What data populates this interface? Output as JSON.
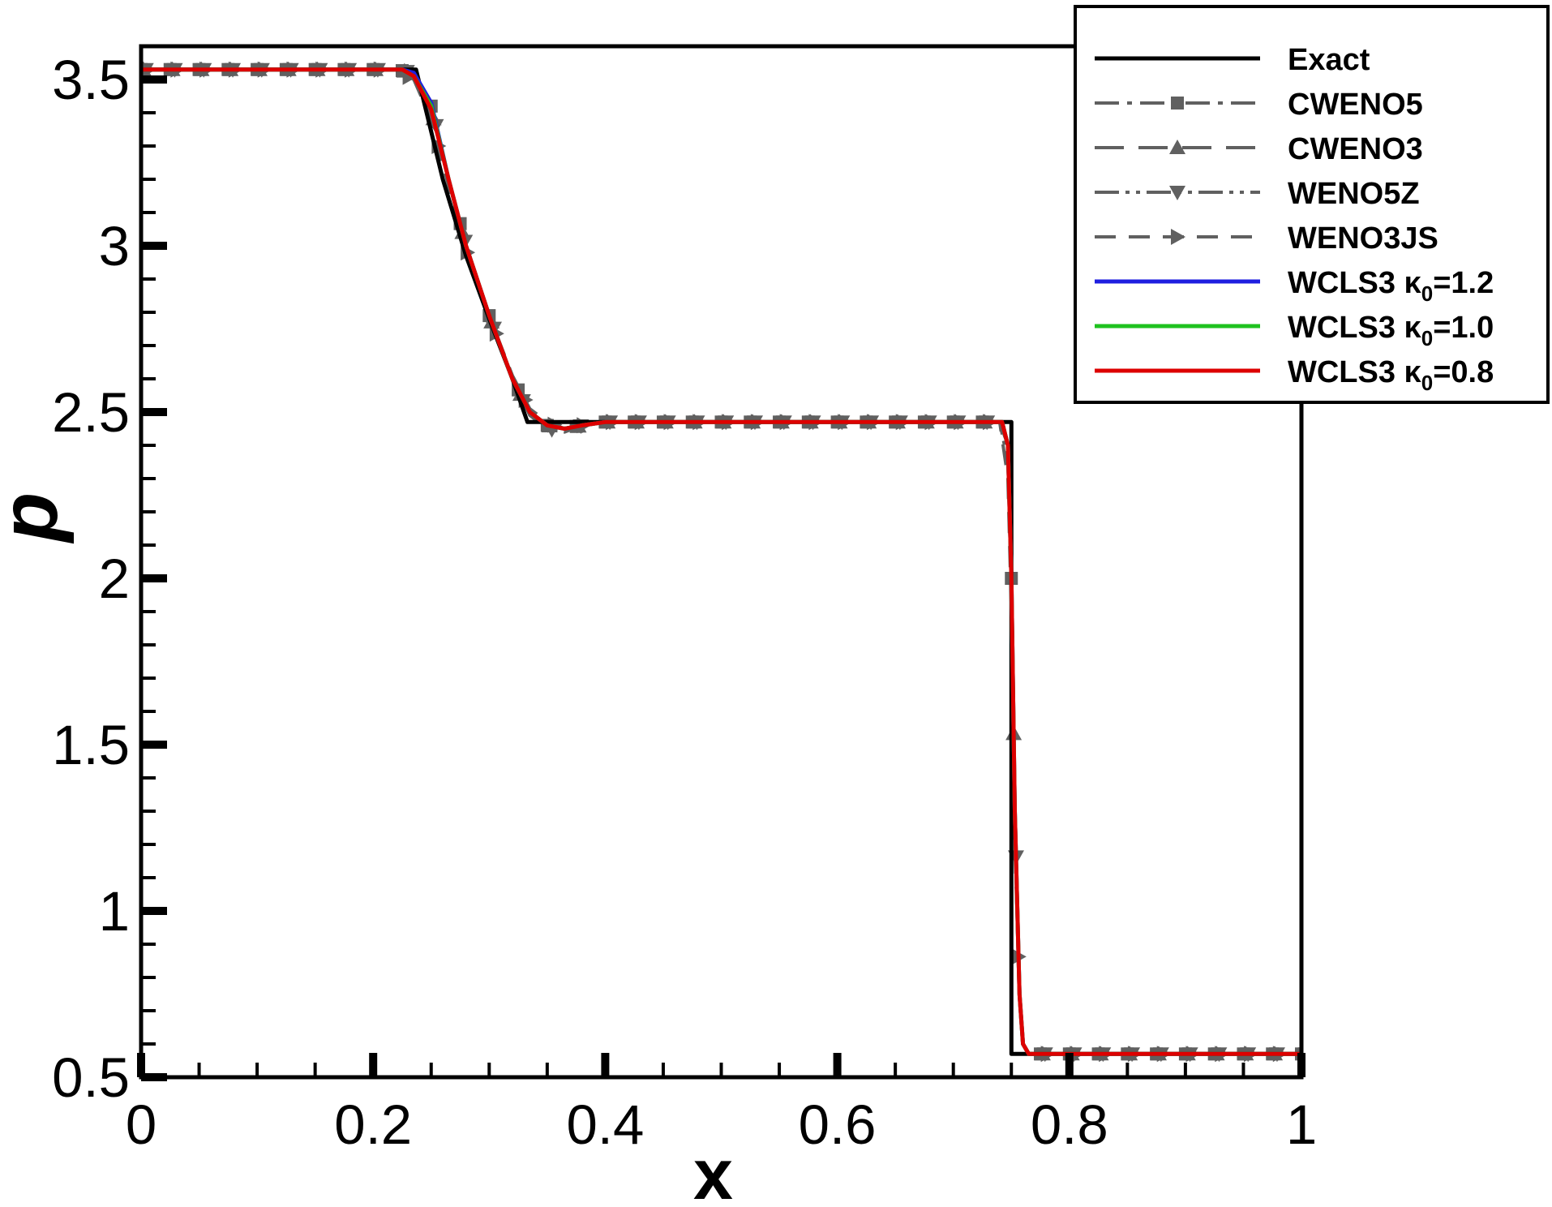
{
  "chart_data": {
    "type": "line",
    "xlabel": "x",
    "ylabel": "p",
    "xlim": [
      0,
      1
    ],
    "ylim": [
      0.5,
      3.6
    ],
    "x_ticks": [
      "0",
      "0.2",
      "0.4",
      "0.6",
      "0.8",
      "1"
    ],
    "x_tick_values": [
      0,
      0.2,
      0.4,
      0.6,
      0.8,
      1
    ],
    "y_ticks": [
      "0.5",
      "1",
      "1.5",
      "2",
      "2.5",
      "3",
      "3.5"
    ],
    "y_tick_values": [
      0.5,
      1,
      1.5,
      2,
      2.5,
      3,
      3.5
    ],
    "grid": false,
    "legend_position": "top-right",
    "series": [
      {
        "name": "Exact",
        "color": "#000000",
        "style": "solid",
        "marker": "none",
        "x": [
          0,
          0.237,
          0.26,
          0.28,
          0.3,
          0.32,
          0.333,
          0.75,
          0.75,
          1
        ],
        "y": [
          3.53,
          3.53,
          3.2,
          2.97,
          2.78,
          2.6,
          2.47,
          2.47,
          0.57,
          0.57
        ]
      },
      {
        "name": "CWENO5",
        "color": "#606060",
        "style": "dash-dot",
        "marker": "square",
        "x": [
          0,
          0.22,
          0.235,
          0.25,
          0.265,
          0.28,
          0.3,
          0.32,
          0.335,
          0.35,
          0.365,
          0.38,
          0.4,
          0.6,
          0.74,
          0.747,
          0.75,
          0.753,
          0.757,
          0.76,
          0.765,
          1
        ],
        "y": [
          3.53,
          3.53,
          3.52,
          3.42,
          3.2,
          3.0,
          2.79,
          2.6,
          2.5,
          2.46,
          2.45,
          2.46,
          2.47,
          2.47,
          2.47,
          2.4,
          2.0,
          1.3,
          0.75,
          0.6,
          0.57,
          0.57
        ]
      },
      {
        "name": "CWENO3",
        "color": "#606060",
        "style": "long-dash",
        "marker": "triangle-up",
        "x": [
          0,
          0.22,
          0.235,
          0.25,
          0.265,
          0.28,
          0.3,
          0.32,
          0.335,
          0.35,
          0.365,
          0.38,
          0.4,
          0.6,
          0.74,
          0.747,
          0.75,
          0.753,
          0.757,
          0.76,
          0.765,
          1
        ],
        "y": [
          3.53,
          3.53,
          3.52,
          3.41,
          3.2,
          3.0,
          2.79,
          2.6,
          2.5,
          2.46,
          2.45,
          2.46,
          2.47,
          2.47,
          2.47,
          2.4,
          2.0,
          1.3,
          0.75,
          0.6,
          0.57,
          0.57
        ]
      },
      {
        "name": "WENO5Z",
        "color": "#606060",
        "style": "dash-dot-dot",
        "marker": "triangle-down",
        "x": [
          0,
          0.22,
          0.235,
          0.25,
          0.265,
          0.28,
          0.3,
          0.32,
          0.335,
          0.35,
          0.365,
          0.38,
          0.4,
          0.6,
          0.74,
          0.747,
          0.75,
          0.753,
          0.757,
          0.76,
          0.765,
          1
        ],
        "y": [
          3.53,
          3.53,
          3.52,
          3.42,
          3.2,
          3.0,
          2.79,
          2.6,
          2.49,
          2.45,
          2.44,
          2.46,
          2.47,
          2.47,
          2.47,
          2.35,
          2.0,
          1.3,
          0.75,
          0.6,
          0.57,
          0.57
        ]
      },
      {
        "name": "WENO3JS",
        "color": "#606060",
        "style": "dashed",
        "marker": "triangle-right",
        "x": [
          0,
          0.22,
          0.235,
          0.25,
          0.265,
          0.28,
          0.3,
          0.32,
          0.335,
          0.35,
          0.365,
          0.38,
          0.4,
          0.6,
          0.74,
          0.747,
          0.75,
          0.753,
          0.757,
          0.76,
          0.765,
          1
        ],
        "y": [
          3.53,
          3.53,
          3.5,
          3.38,
          3.18,
          2.99,
          2.79,
          2.61,
          2.51,
          2.47,
          2.45,
          2.46,
          2.47,
          2.47,
          2.47,
          2.3,
          1.9,
          1.2,
          0.75,
          0.6,
          0.57,
          0.57
        ]
      },
      {
        "name": "WCLS3 κ0=1.2",
        "label_main": "WCLS3 κ",
        "label_sub": "0",
        "label_tail": "=1.2",
        "color": "#1f1fe0",
        "style": "solid",
        "marker": "none",
        "x": [
          0,
          0.225,
          0.235,
          0.25,
          0.265,
          0.28,
          0.3,
          0.32,
          0.335,
          0.35,
          0.365,
          0.38,
          0.4,
          0.6,
          0.742,
          0.747,
          0.75,
          0.753,
          0.757,
          0.76,
          0.765,
          1
        ],
        "y": [
          3.53,
          3.53,
          3.52,
          3.43,
          3.2,
          3.0,
          2.79,
          2.6,
          2.5,
          2.46,
          2.45,
          2.46,
          2.47,
          2.47,
          2.47,
          2.4,
          2.0,
          1.3,
          0.75,
          0.6,
          0.57,
          0.57
        ]
      },
      {
        "name": "WCLS3 κ0=1.0",
        "label_main": "WCLS3 κ",
        "label_sub": "0",
        "label_tail": "=1.0",
        "color": "#1fc21f",
        "style": "solid",
        "marker": "none",
        "x": [
          0,
          0.225,
          0.235,
          0.25,
          0.265,
          0.28,
          0.3,
          0.32,
          0.335,
          0.35,
          0.365,
          0.38,
          0.4,
          0.6,
          0.742,
          0.747,
          0.75,
          0.753,
          0.757,
          0.76,
          0.765,
          1
        ],
        "y": [
          3.53,
          3.53,
          3.51,
          3.42,
          3.2,
          3.0,
          2.79,
          2.6,
          2.5,
          2.46,
          2.45,
          2.46,
          2.47,
          2.47,
          2.47,
          2.4,
          2.0,
          1.3,
          0.75,
          0.6,
          0.57,
          0.57
        ]
      },
      {
        "name": "WCLS3 κ0=0.8",
        "label_main": "WCLS3 κ",
        "label_sub": "0",
        "label_tail": "=0.8",
        "color": "#dd0000",
        "style": "solid",
        "marker": "none",
        "x": [
          0,
          0.225,
          0.235,
          0.25,
          0.265,
          0.28,
          0.3,
          0.32,
          0.335,
          0.35,
          0.365,
          0.38,
          0.4,
          0.6,
          0.742,
          0.747,
          0.75,
          0.753,
          0.757,
          0.76,
          0.765,
          1
        ],
        "y": [
          3.53,
          3.53,
          3.51,
          3.41,
          3.2,
          3.0,
          2.79,
          2.6,
          2.5,
          2.46,
          2.45,
          2.46,
          2.47,
          2.47,
          2.47,
          2.4,
          2.0,
          1.3,
          0.75,
          0.6,
          0.57,
          0.57
        ]
      }
    ]
  }
}
